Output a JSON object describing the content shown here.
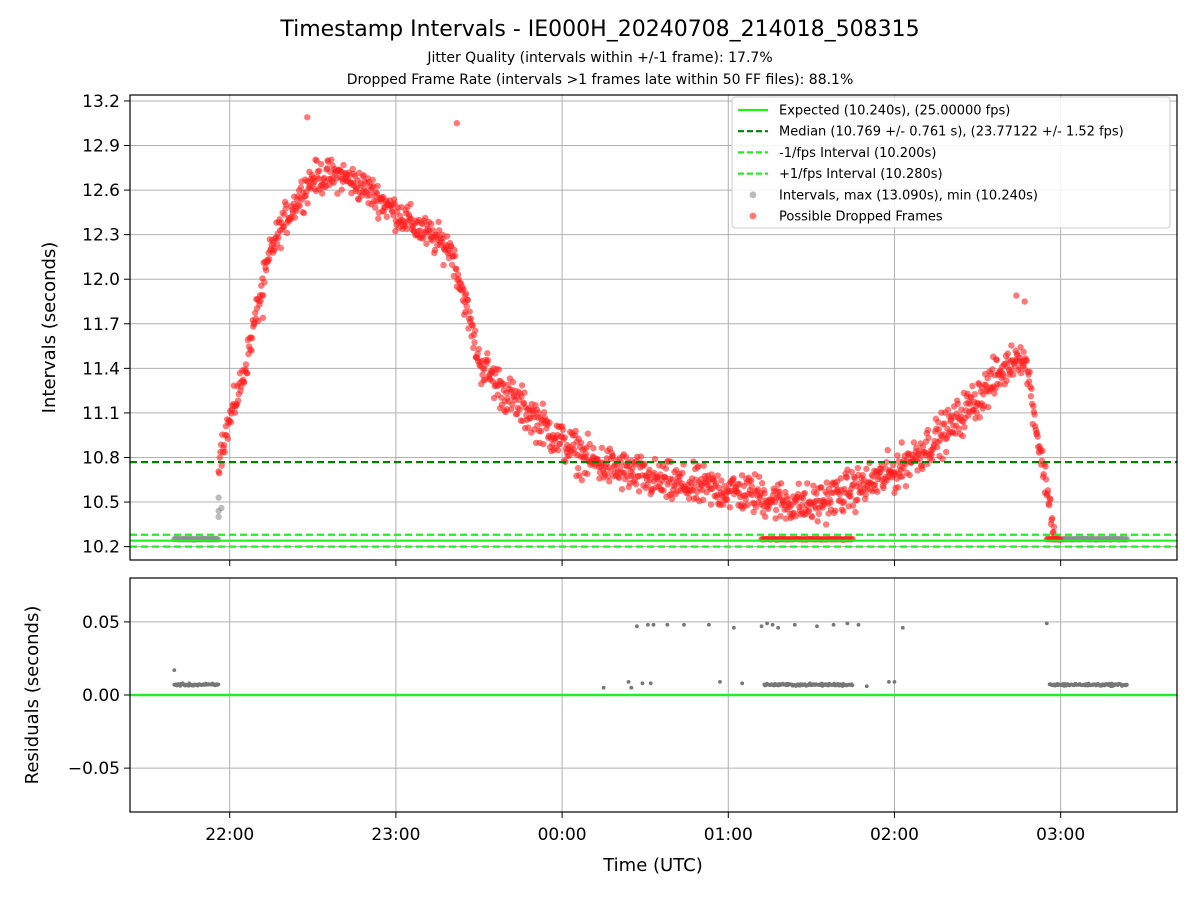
{
  "chart_data": [
    {
      "panel": "intervals",
      "type": "scatter",
      "title": "Timestamp Intervals - IE000H_20240708_214018_508315",
      "subtitle_lines": [
        "Jitter Quality (intervals within +/-1 frame): 17.7%",
        "Dropped Frame Rate (intervals >1 frames late within 50 FF files): 88.1%"
      ],
      "xlabel": "",
      "ylabel": "Intervals (seconds)",
      "x_axis": "time (UTC), wraps past midnight",
      "xlim": [
        "21:24",
        "03:42"
      ],
      "ylim": [
        10.11,
        13.24
      ],
      "y_ticks": [
        10.2,
        10.5,
        10.8,
        11.1,
        11.4,
        11.7,
        12.0,
        12.3,
        12.6,
        12.9,
        13.2
      ],
      "y_tick_labels": [
        "10.2",
        "10.5",
        "10.8",
        "11.1",
        "11.4",
        "11.7",
        "12.0",
        "12.3",
        "12.6",
        "12.9",
        "13.2"
      ],
      "grid": true,
      "legend_position": "top-right",
      "reference_lines": [
        {
          "name": "Expected (10.240s), (25.00000 fps)",
          "y": 10.24,
          "color": "#22ee22",
          "style": "solid"
        },
        {
          "name": "Median (10.769 +/- 0.761 s), (23.77122 +/- 1.52 fps)",
          "y": 10.769,
          "color": "#008000",
          "style": "dashed"
        },
        {
          "name": "-1/fps Interval (10.200s)",
          "y": 10.2,
          "color": "#22ee22",
          "style": "dashed"
        },
        {
          "name": "+1/fps Interval (10.280s)",
          "y": 10.28,
          "color": "#22ee22",
          "style": "dashed"
        }
      ],
      "series": [
        {
          "name": "Intervals, max (13.090s), min (10.240s)",
          "color": "#909090",
          "segments": [
            {
              "x_start": "21:40",
              "x_end": "21:56",
              "y": 10.25
            },
            {
              "x_start": "02:58",
              "x_end": "03:24",
              "y": 10.25
            }
          ],
          "points": [
            {
              "x": "21:56",
              "y": 10.4
            },
            {
              "x": "21:56",
              "y": 10.44
            },
            {
              "x": "21:57",
              "y": 10.46
            },
            {
              "x": "21:56",
              "y": 10.53
            }
          ]
        },
        {
          "name": "Possible Dropped Frames",
          "color": "#ff2020",
          "trend": [
            {
              "x": "21:56",
              "y": 10.8
            },
            {
              "x": "22:00",
              "y": 11.05
            },
            {
              "x": "22:05",
              "y": 11.35
            },
            {
              "x": "22:10",
              "y": 11.8
            },
            {
              "x": "22:15",
              "y": 12.2
            },
            {
              "x": "22:20",
              "y": 12.4
            },
            {
              "x": "22:25",
              "y": 12.55
            },
            {
              "x": "22:30",
              "y": 12.68
            },
            {
              "x": "22:40",
              "y": 12.7
            },
            {
              "x": "22:50",
              "y": 12.6
            },
            {
              "x": "23:00",
              "y": 12.45
            },
            {
              "x": "23:10",
              "y": 12.32
            },
            {
              "x": "23:20",
              "y": 12.2
            },
            {
              "x": "23:25",
              "y": 11.85
            },
            {
              "x": "23:30",
              "y": 11.45
            },
            {
              "x": "23:40",
              "y": 11.22
            },
            {
              "x": "23:50",
              "y": 11.07
            },
            {
              "x": "00:00",
              "y": 10.9
            },
            {
              "x": "00:10",
              "y": 10.78
            },
            {
              "x": "00:20",
              "y": 10.72
            },
            {
              "x": "00:30",
              "y": 10.66
            },
            {
              "x": "00:40",
              "y": 10.62
            },
            {
              "x": "00:50",
              "y": 10.6
            },
            {
              "x": "01:00",
              "y": 10.58
            },
            {
              "x": "01:10",
              "y": 10.55
            },
            {
              "x": "01:20",
              "y": 10.5
            },
            {
              "x": "01:30",
              "y": 10.48
            },
            {
              "x": "01:40",
              "y": 10.55
            },
            {
              "x": "01:50",
              "y": 10.62
            },
            {
              "x": "02:00",
              "y": 10.7
            },
            {
              "x": "02:10",
              "y": 10.85
            },
            {
              "x": "02:20",
              "y": 11.0
            },
            {
              "x": "02:30",
              "y": 11.2
            },
            {
              "x": "02:40",
              "y": 11.4
            },
            {
              "x": "02:45",
              "y": 11.5
            },
            {
              "x": "02:48",
              "y": 11.4
            },
            {
              "x": "02:52",
              "y": 10.9
            },
            {
              "x": "02:56",
              "y": 10.5
            },
            {
              "x": "02:58",
              "y": 10.25
            }
          ],
          "floor_clusters": [
            {
              "x_start": "01:12",
              "x_end": "01:45",
              "y": 10.25
            },
            {
              "x_start": "02:55",
              "x_end": "03:00",
              "y": 10.25
            }
          ]
        }
      ]
    },
    {
      "panel": "residuals",
      "type": "scatter",
      "xlabel": "Time (UTC)",
      "ylabel": "Residuals (seconds)",
      "ylim": [
        -0.08,
        0.08
      ],
      "y_ticks": [
        -0.05,
        0.0,
        0.05
      ],
      "y_tick_labels": [
        "−0.05",
        "0.00",
        "0.05"
      ],
      "x_ticks": [
        "22:00",
        "23:00",
        "00:00",
        "01:00",
        "02:00",
        "03:00"
      ],
      "x_tick_labels": [
        "22:00",
        "23:00",
        "00:00",
        "01:00",
        "02:00",
        "03:00"
      ],
      "grid": true,
      "reference_lines": [
        {
          "y": 0.0,
          "color": "#22ee22",
          "style": "solid"
        }
      ],
      "series": [
        {
          "name": "residuals",
          "color": "#777777",
          "segments": [
            {
              "x_start": "21:40",
              "x_end": "21:56",
              "y": 0.007
            },
            {
              "x_start": "02:56",
              "x_end": "03:24",
              "y": 0.007
            },
            {
              "x_start": "01:13",
              "x_end": "01:45",
              "y": 0.007
            }
          ],
          "points": [
            {
              "x": "21:40",
              "y": 0.017
            },
            {
              "x": "00:15",
              "y": 0.005
            },
            {
              "x": "00:24",
              "y": 0.009
            },
            {
              "x": "00:25",
              "y": 0.005
            },
            {
              "x": "00:29",
              "y": 0.008
            },
            {
              "x": "00:32",
              "y": 0.008
            },
            {
              "x": "00:57",
              "y": 0.009
            },
            {
              "x": "01:05",
              "y": 0.008
            },
            {
              "x": "01:50",
              "y": 0.006
            },
            {
              "x": "01:58",
              "y": 0.009
            },
            {
              "x": "02:00",
              "y": 0.009
            },
            {
              "x": "00:27",
              "y": 0.047
            },
            {
              "x": "00:31",
              "y": 0.048
            },
            {
              "x": "00:33",
              "y": 0.048
            },
            {
              "x": "00:38",
              "y": 0.048
            },
            {
              "x": "00:44",
              "y": 0.048
            },
            {
              "x": "00:53",
              "y": 0.048
            },
            {
              "x": "01:02",
              "y": 0.046
            },
            {
              "x": "01:12",
              "y": 0.047
            },
            {
              "x": "01:14",
              "y": 0.049
            },
            {
              "x": "01:16",
              "y": 0.048
            },
            {
              "x": "01:18",
              "y": 0.046
            },
            {
              "x": "01:24",
              "y": 0.048
            },
            {
              "x": "01:32",
              "y": 0.047
            },
            {
              "x": "01:38",
              "y": 0.048
            },
            {
              "x": "01:43",
              "y": 0.049
            },
            {
              "x": "01:47",
              "y": 0.048
            },
            {
              "x": "02:03",
              "y": 0.046
            },
            {
              "x": "02:55",
              "y": 0.049
            }
          ]
        }
      ]
    }
  ]
}
